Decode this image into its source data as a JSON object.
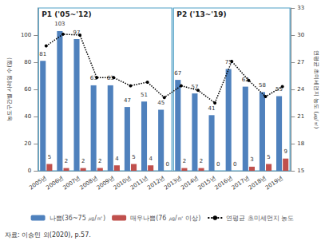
{
  "chart_data": {
    "type": "bar",
    "categories": [
      "2005년",
      "2006년",
      "2007년",
      "2008년",
      "2009년",
      "2010년",
      "2011년",
      "2012년",
      "2013년",
      "2014년",
      "2015년",
      "2016년",
      "2017년",
      "2018년",
      "2019년"
    ],
    "series": [
      {
        "name": "나쁨(36~75 ㎍/㎥)",
        "type": "bar",
        "color": "#4f81bd",
        "data_labels": true,
        "values": [
          81,
          103,
          97,
          63,
          63,
          47,
          51,
          45,
          67,
          57,
          41,
          75,
          62,
          58,
          55
        ]
      },
      {
        "name": "매우나쁨(76 ㎍/㎥ 이상)",
        "type": "bar",
        "color": "#c0504d",
        "data_labels": true,
        "values": [
          5,
          2,
          2,
          2,
          4,
          5,
          4,
          0,
          2,
          2,
          0,
          0,
          3,
          5,
          9
        ]
      },
      {
        "name": "연평균 초미세먼지 농도",
        "type": "line",
        "axis": "y2",
        "color": "#000000",
        "marker": "circle",
        "line_style": "dotted",
        "values": [
          28.8,
          30.1,
          30.0,
          25.3,
          25.3,
          24.4,
          24.8,
          23.1,
          24.4,
          23.9,
          22.5,
          27.1,
          25.0,
          23.2,
          24.3
        ]
      }
    ],
    "y_label": "농도구간별 사례일 수(일)",
    "y2_label": "연평균 초미세먼지 농도 (㎍/㎥)",
    "ylim": [
      0,
      120
    ],
    "yticks": [
      0,
      20,
      40,
      60,
      80,
      100
    ],
    "y2lim": [
      15,
      33
    ],
    "y2ticks": [
      15,
      18,
      21,
      24,
      27,
      30,
      33
    ],
    "legend": "bottom",
    "annotations": [
      {
        "text": "P1 ('05~'12)",
        "categories": [
          "2005년",
          "2012년"
        ]
      },
      {
        "text": "P2 ('13~'19)",
        "categories": [
          "2013년",
          "2019년"
        ]
      }
    ],
    "source": "자료: 이승민 외(2020), p.57."
  }
}
